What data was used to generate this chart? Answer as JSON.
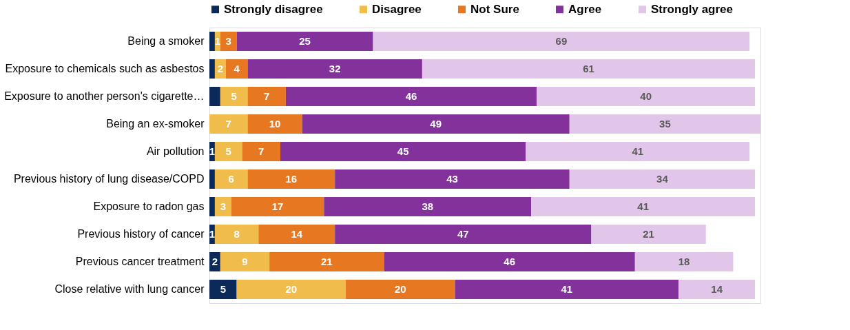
{
  "chart_data": {
    "type": "bar",
    "orientation": "horizontal",
    "stacked": true,
    "legend": "top",
    "categories": [
      "Being a smoker",
      "Exposure to chemicals such as asbestos",
      "Exposure to another person's cigarette…",
      "Being an ex-smoker",
      "Air pollution",
      "Previous history of lung disease/COPD",
      "Exposure to radon gas",
      "Previous history of cancer",
      "Previous cancer treatment",
      "Close relative with lung cancer"
    ],
    "series": [
      {
        "name": "Strongly disagree",
        "color": "#0b2a5a",
        "values": [
          1,
          1,
          2,
          0,
          1,
          1,
          1,
          1,
          2,
          5
        ],
        "value_labels": [
          null,
          null,
          null,
          null,
          "1",
          null,
          null,
          "1",
          "2",
          "5"
        ]
      },
      {
        "name": "Disagree",
        "color": "#f0bd4c",
        "values": [
          1,
          2,
          5,
          7,
          5,
          6,
          3,
          8,
          9,
          20
        ],
        "value_labels": [
          "1",
          "2",
          "5",
          "7",
          "5",
          "6",
          "3",
          "8",
          "9",
          "20"
        ]
      },
      {
        "name": "Not Sure",
        "color": "#e87722",
        "values": [
          3,
          4,
          7,
          10,
          7,
          16,
          17,
          14,
          21,
          20
        ],
        "value_labels": [
          "3",
          "4",
          "7",
          "10",
          "7",
          "16",
          "17",
          "14",
          "21",
          "20"
        ]
      },
      {
        "name": "Agree",
        "color": "#84329b",
        "values": [
          25,
          32,
          46,
          49,
          45,
          43,
          38,
          47,
          46,
          41
        ],
        "value_labels": [
          "25",
          "32",
          "46",
          "49",
          "45",
          "43",
          "38",
          "47",
          "46",
          "41"
        ]
      },
      {
        "name": "Strongly agree",
        "color": "#e2c6ea",
        "values": [
          69,
          61,
          40,
          35,
          41,
          34,
          41,
          21,
          18,
          14
        ],
        "value_labels": [
          "69",
          "61",
          "40",
          "35",
          "41",
          "34",
          "41",
          "21",
          "18",
          "14"
        ]
      }
    ]
  }
}
